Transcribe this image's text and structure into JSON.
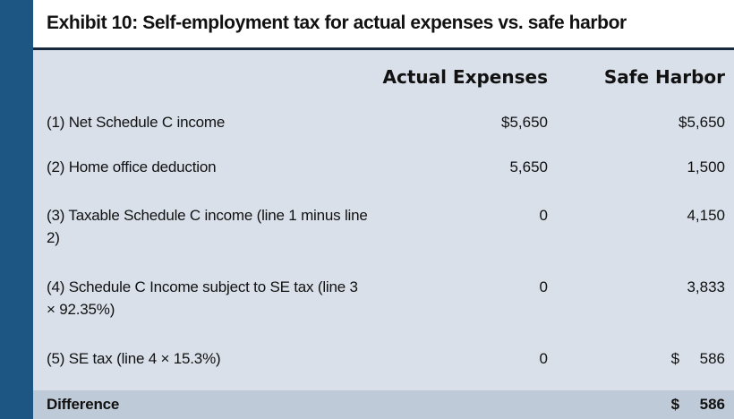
{
  "title": "Exhibit 10: Self-employment tax for actual expenses vs. safe harbor",
  "columns": {
    "actual": "Actual Expenses",
    "safe": "Safe Harbor"
  },
  "rows": [
    {
      "label": "(1) Net Schedule C income",
      "actual": "$5,650",
      "safe": "$5,650"
    },
    {
      "label": "(2) Home office deduction",
      "actual": "5,650",
      "safe": "1,500"
    },
    {
      "label": "(3) Taxable Schedule C income (line 1 minus line 2)",
      "actual": "0",
      "safe": "4,150"
    },
    {
      "label": "(4) Schedule C Income subject to SE tax (line 3 × 92.35%)",
      "actual": "0",
      "safe": "3,833"
    },
    {
      "label": "(5) SE tax (line 4 × 15.3%)",
      "actual": "0",
      "safe_symbol": "$",
      "safe": "586"
    }
  ],
  "difference": {
    "label": "Difference",
    "safe_symbol": "$",
    "safe": "586"
  },
  "colors": {
    "left_bar": "#1e5683",
    "background": "#d9e0ea",
    "title_background": "#ffffff",
    "title_rule": "#17293f",
    "difference_row": "#bfcad8"
  }
}
